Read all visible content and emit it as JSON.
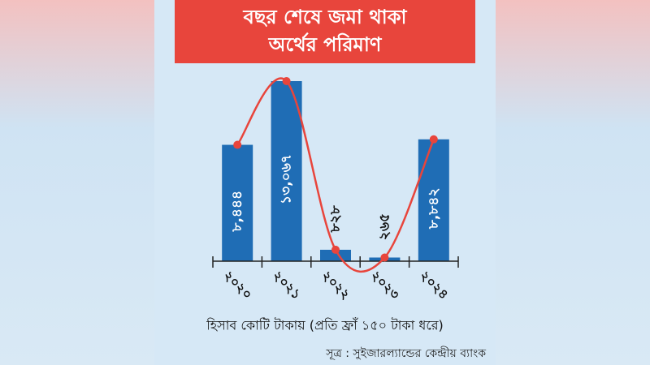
{
  "chart_data": {
    "type": "bar",
    "title_lines": [
      "বছর শেষে জমা থাকা",
      "অর্থের পরিমাণ"
    ],
    "categories": [
      "২০২০",
      "২০২১",
      "২০২২",
      "২০২৩",
      "২০২৪"
    ],
    "values": [
      8444,
      13067,
      828,
      265,
      8842
    ],
    "value_labels": [
      "৮,৪৪৪",
      "১৩,০৬৭",
      "৮২৮",
      "২৬৫",
      "৮,৮৪২"
    ],
    "color": "#1f6db5",
    "line_color": "#e8453c",
    "note": "হিসাব কোটি টাকায় (প্রতি ফ্রাঁ ১৫০ টাকা ধরে)",
    "source": "সূত্র : সুইজারল্যান্ডের কেন্দ্রীয় ব্যাংক"
  }
}
